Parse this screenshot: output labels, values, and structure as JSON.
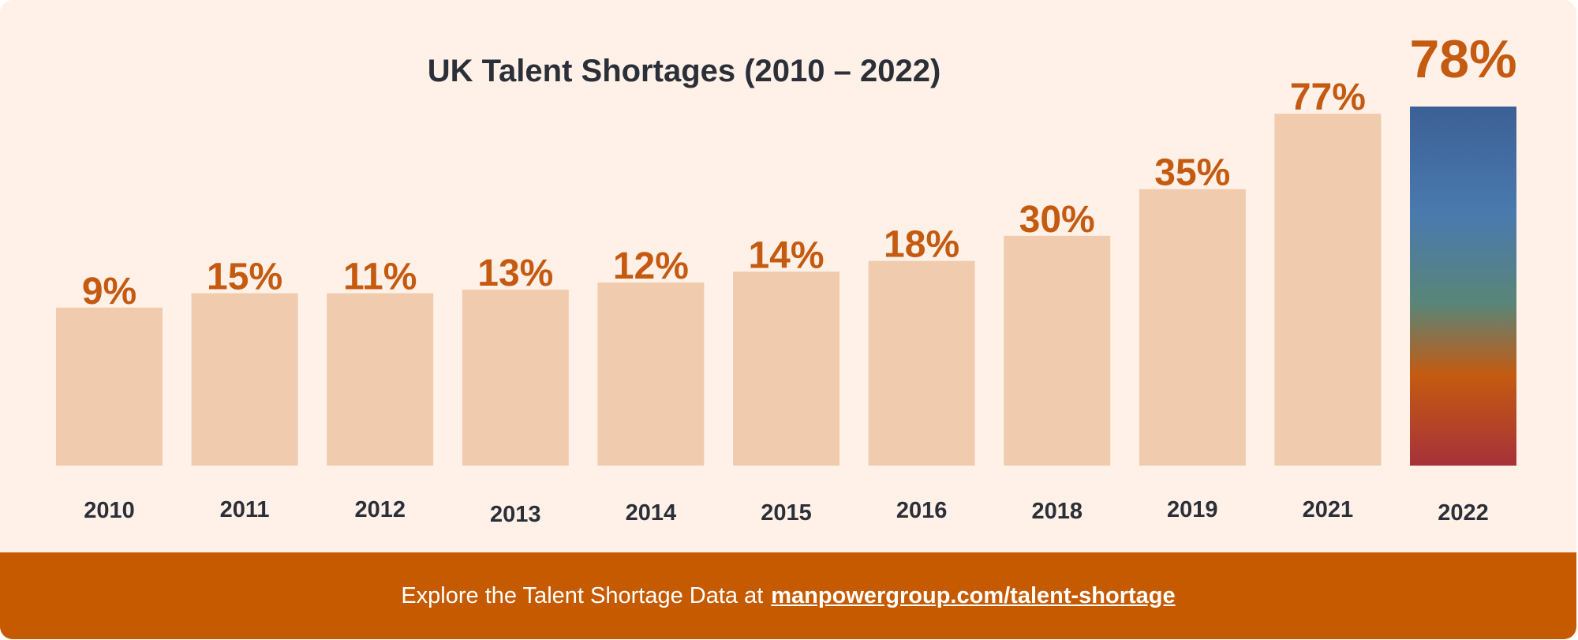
{
  "chart_data": {
    "type": "bar",
    "title": "UK Talent Shortages (2010 – 2022)",
    "categories": [
      "2010",
      "2011",
      "2012",
      "2013",
      "2014",
      "2015",
      "2016",
      "2018",
      "2019",
      "2021",
      "2022"
    ],
    "values": [
      9,
      15,
      11,
      13,
      12,
      14,
      18,
      30,
      35,
      77,
      78
    ],
    "value_labels": [
      "9%",
      "15%",
      "11%",
      "13%",
      "12%",
      "14%",
      "18%",
      "30%",
      "35%",
      "77%",
      "78%"
    ],
    "bar_heights": [
      44,
      48,
      48,
      49,
      51,
      54,
      57,
      64,
      77,
      98,
      100
    ],
    "xlabel": "",
    "ylabel": "",
    "grid": false,
    "legend": "none",
    "highlighted_category": "2022",
    "colors": {
      "bar": "#f0cbad",
      "value_label": "#c55a11",
      "highlight_gradient": [
        "#3c6096",
        "#4a7aae",
        "#5a8577",
        "#c55a11",
        "#a6313b"
      ]
    }
  },
  "footer": {
    "text": "Explore the Talent Shortage Data at",
    "link_text": "manpowergroup.com/talent-shortage"
  }
}
